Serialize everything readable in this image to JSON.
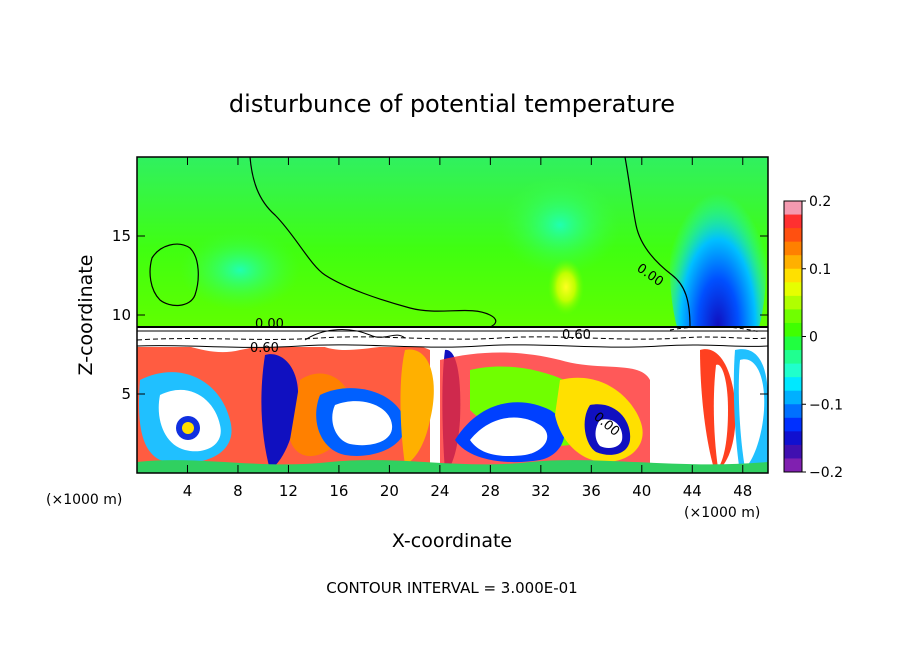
{
  "chart_data": {
    "type": "heatmap",
    "title": "disturbunce of potential temperature",
    "xlabel": "X-coordinate",
    "ylabel": "Z-coordinate",
    "x_unit_left": "(×1000 m)",
    "x_unit_right": "(×1000 m)",
    "xlim": [
      0,
      50
    ],
    "ylim": [
      0,
      20
    ],
    "x_ticks": [
      4,
      8,
      12,
      16,
      20,
      24,
      28,
      32,
      36,
      40,
      44,
      48
    ],
    "y_ticks": [
      5,
      10,
      15
    ],
    "colorbar": {
      "min": -0.2,
      "max": 0.2,
      "ticks": [
        0.2,
        0.1,
        0,
        -0.1,
        -0.2
      ],
      "tick_labels": [
        "0.2",
        "0.1",
        "0",
        "−0.1",
        "−0.2"
      ],
      "colors": [
        "#f49ab0",
        "#ff3030",
        "#ff5010",
        "#ff8000",
        "#ffb000",
        "#ffe000",
        "#e6ff00",
        "#b0ff00",
        "#70ff00",
        "#40ff00",
        "#20ff40",
        "#20ff90",
        "#20ffcc",
        "#00e8ff",
        "#00b0ff",
        "#0070ff",
        "#0030ff",
        "#1010d0",
        "#4010b0",
        "#8020b0"
      ]
    },
    "contour_labels": [
      {
        "text": "0.00",
        "x": 8.9,
        "z": 9.6
      },
      {
        "text": "0.60",
        "x": 7.4,
        "z": 8.3
      },
      {
        "text": "0.60",
        "x": 33.8,
        "z": 8.8
      },
      {
        "text": "0.00",
        "x": 40.0,
        "z": 13.0
      },
      {
        "text": "0.00",
        "x": 38.5,
        "z": 3.3
      }
    ],
    "footer": "CONTOUR INTERVAL = 3.000E-01"
  }
}
